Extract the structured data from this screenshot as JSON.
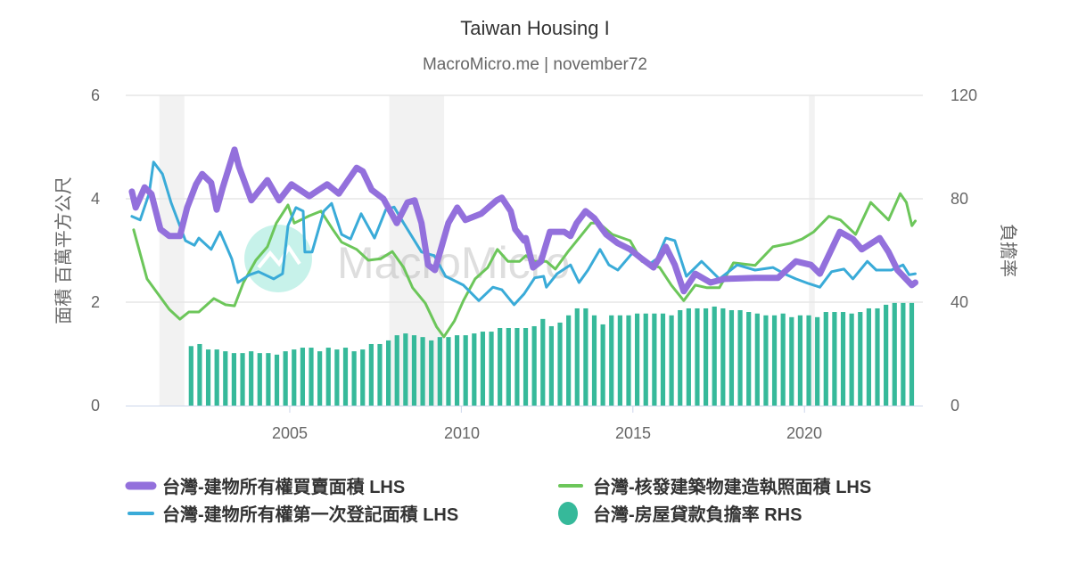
{
  "chart_data": {
    "type": "line+bar",
    "title": "Taiwan Housing I",
    "subtitle": "MacroMicro.me | november72",
    "watermark": "MacroMicro",
    "xlim": [
      2000.22,
      2023.45
    ],
    "x_ticks": [
      "2005",
      "2010",
      "2015",
      "2020"
    ],
    "y_left": {
      "label": "面積 百萬平方公尺",
      "lim": [
        0,
        6
      ],
      "ticks": [
        "0",
        "2",
        "4",
        "6"
      ]
    },
    "y_right": {
      "label": "負擔率",
      "lim": [
        0,
        120
      ],
      "ticks": [
        "0",
        "40",
        "80",
        "120"
      ]
    },
    "grid": true,
    "legend_position": "bottom",
    "shaded_periods": [
      [
        2001.2,
        2001.93
      ],
      [
        2007.9,
        2009.5
      ],
      [
        2020.13,
        2020.3
      ]
    ],
    "colors": {
      "purple": "#9370dc",
      "green": "#6cc65a",
      "blue": "#3aabd8",
      "teal": "#36b99a",
      "shade": "#f2f2f2"
    },
    "series": [
      {
        "name": "台灣-建物所有權買賣面積 LHS",
        "type": "line",
        "axis": "left",
        "color": "#9370dc",
        "width": 7,
        "points": [
          [
            2000.4,
            4.14
          ],
          [
            2000.51,
            3.83
          ],
          [
            2000.77,
            4.22
          ],
          [
            2000.97,
            4.09
          ],
          [
            2001.23,
            3.41
          ],
          [
            2001.49,
            3.28
          ],
          [
            2001.8,
            3.28
          ],
          [
            2002.01,
            3.83
          ],
          [
            2002.27,
            4.28
          ],
          [
            2002.45,
            4.48
          ],
          [
            2002.71,
            4.31
          ],
          [
            2002.87,
            3.79
          ],
          [
            2003.05,
            4.22
          ],
          [
            2003.39,
            4.95
          ],
          [
            2003.52,
            4.62
          ],
          [
            2003.88,
            3.97
          ],
          [
            2004.35,
            4.36
          ],
          [
            2004.69,
            3.97
          ],
          [
            2005.05,
            4.28
          ],
          [
            2005.57,
            4.05
          ],
          [
            2006.09,
            4.28
          ],
          [
            2006.43,
            4.1
          ],
          [
            2006.95,
            4.6
          ],
          [
            2007.13,
            4.53
          ],
          [
            2007.39,
            4.17
          ],
          [
            2007.73,
            4.0
          ],
          [
            2008.12,
            3.53
          ],
          [
            2008.43,
            3.93
          ],
          [
            2008.64,
            3.97
          ],
          [
            2008.84,
            3.53
          ],
          [
            2009.03,
            2.72
          ],
          [
            2009.23,
            2.62
          ],
          [
            2009.62,
            3.53
          ],
          [
            2009.88,
            3.83
          ],
          [
            2010.12,
            3.59
          ],
          [
            2010.58,
            3.71
          ],
          [
            2011.03,
            3.97
          ],
          [
            2011.18,
            4.02
          ],
          [
            2011.44,
            3.76
          ],
          [
            2011.57,
            3.41
          ],
          [
            2011.83,
            3.19
          ],
          [
            2011.88,
            3.24
          ],
          [
            2012.09,
            2.67
          ],
          [
            2012.32,
            2.79
          ],
          [
            2012.58,
            3.36
          ],
          [
            2013.0,
            3.36
          ],
          [
            2013.18,
            3.28
          ],
          [
            2013.36,
            3.53
          ],
          [
            2013.62,
            3.76
          ],
          [
            2013.88,
            3.62
          ],
          [
            2014.22,
            3.31
          ],
          [
            2014.56,
            3.14
          ],
          [
            2014.92,
            3.02
          ],
          [
            2015.26,
            2.84
          ],
          [
            2015.6,
            2.67
          ],
          [
            2015.96,
            3.07
          ],
          [
            2016.22,
            2.72
          ],
          [
            2016.48,
            2.21
          ],
          [
            2016.82,
            2.55
          ],
          [
            2017.26,
            2.38
          ],
          [
            2017.68,
            2.45
          ],
          [
            2018.56,
            2.47
          ],
          [
            2019.23,
            2.47
          ],
          [
            2019.75,
            2.79
          ],
          [
            2020.19,
            2.72
          ],
          [
            2020.45,
            2.55
          ],
          [
            2021.03,
            3.36
          ],
          [
            2021.41,
            3.22
          ],
          [
            2021.67,
            3.02
          ],
          [
            2022.19,
            3.24
          ],
          [
            2022.45,
            2.97
          ],
          [
            2022.71,
            2.62
          ],
          [
            2023.13,
            2.33
          ],
          [
            2023.23,
            2.38
          ]
        ]
      },
      {
        "name": "台灣-核發建築物建造執照面積 LHS",
        "type": "line",
        "axis": "left",
        "color": "#6cc65a",
        "width": 3,
        "points": [
          [
            2000.45,
            3.4
          ],
          [
            2000.84,
            2.45
          ],
          [
            2001.16,
            2.16
          ],
          [
            2001.49,
            1.86
          ],
          [
            2001.8,
            1.67
          ],
          [
            2002.06,
            1.81
          ],
          [
            2002.35,
            1.81
          ],
          [
            2002.79,
            2.07
          ],
          [
            2003.13,
            1.95
          ],
          [
            2003.39,
            1.93
          ],
          [
            2003.65,
            2.38
          ],
          [
            2004.01,
            2.81
          ],
          [
            2004.35,
            3.07
          ],
          [
            2004.61,
            3.53
          ],
          [
            2004.95,
            3.88
          ],
          [
            2005.13,
            3.53
          ],
          [
            2005.57,
            3.67
          ],
          [
            2005.91,
            3.76
          ],
          [
            2006.25,
            3.41
          ],
          [
            2006.51,
            3.16
          ],
          [
            2006.95,
            3.02
          ],
          [
            2007.29,
            2.81
          ],
          [
            2007.65,
            2.84
          ],
          [
            2007.99,
            2.98
          ],
          [
            2008.32,
            2.67
          ],
          [
            2008.58,
            2.28
          ],
          [
            2008.95,
            1.98
          ],
          [
            2009.28,
            1.52
          ],
          [
            2009.49,
            1.33
          ],
          [
            2009.8,
            1.64
          ],
          [
            2010.06,
            2.03
          ],
          [
            2010.4,
            2.45
          ],
          [
            2010.77,
            2.67
          ],
          [
            2011.05,
            3.02
          ],
          [
            2011.36,
            2.79
          ],
          [
            2011.7,
            2.79
          ],
          [
            2011.88,
            2.9
          ],
          [
            2012.14,
            2.79
          ],
          [
            2012.48,
            2.79
          ],
          [
            2012.74,
            2.64
          ],
          [
            2013.1,
            2.97
          ],
          [
            2013.43,
            3.24
          ],
          [
            2013.78,
            3.53
          ],
          [
            2014.01,
            3.53
          ],
          [
            2014.4,
            3.31
          ],
          [
            2014.92,
            3.19
          ],
          [
            2015.26,
            2.79
          ],
          [
            2015.78,
            2.67
          ],
          [
            2016.12,
            2.33
          ],
          [
            2016.48,
            2.03
          ],
          [
            2016.82,
            2.33
          ],
          [
            2017.16,
            2.28
          ],
          [
            2017.52,
            2.28
          ],
          [
            2017.93,
            2.76
          ],
          [
            2018.56,
            2.71
          ],
          [
            2019.08,
            3.07
          ],
          [
            2019.6,
            3.14
          ],
          [
            2019.93,
            3.22
          ],
          [
            2020.27,
            3.36
          ],
          [
            2020.71,
            3.66
          ],
          [
            2021.05,
            3.59
          ],
          [
            2021.49,
            3.31
          ],
          [
            2021.93,
            3.93
          ],
          [
            2022.19,
            3.76
          ],
          [
            2022.45,
            3.59
          ],
          [
            2022.79,
            4.1
          ],
          [
            2022.97,
            3.93
          ],
          [
            2023.13,
            3.48
          ],
          [
            2023.23,
            3.57
          ]
        ]
      },
      {
        "name": "台灣-建物所有權第一次登記面積 LHS",
        "type": "line",
        "axis": "left",
        "color": "#3aabd8",
        "width": 3,
        "points": [
          [
            2000.4,
            3.66
          ],
          [
            2000.64,
            3.59
          ],
          [
            2000.9,
            4.1
          ],
          [
            2001.03,
            4.71
          ],
          [
            2001.29,
            4.48
          ],
          [
            2001.54,
            3.93
          ],
          [
            2001.96,
            3.19
          ],
          [
            2002.22,
            3.1
          ],
          [
            2002.35,
            3.24
          ],
          [
            2002.71,
            3.02
          ],
          [
            2002.97,
            3.36
          ],
          [
            2003.31,
            2.84
          ],
          [
            2003.49,
            2.38
          ],
          [
            2003.83,
            2.53
          ],
          [
            2004.09,
            2.59
          ],
          [
            2004.53,
            2.45
          ],
          [
            2004.79,
            2.55
          ],
          [
            2004.95,
            3.48
          ],
          [
            2005.18,
            3.83
          ],
          [
            2005.39,
            3.76
          ],
          [
            2005.44,
            2.97
          ],
          [
            2005.65,
            2.97
          ],
          [
            2005.99,
            3.76
          ],
          [
            2006.22,
            3.91
          ],
          [
            2006.51,
            3.31
          ],
          [
            2006.77,
            3.22
          ],
          [
            2007.08,
            3.71
          ],
          [
            2007.47,
            3.24
          ],
          [
            2007.8,
            3.79
          ],
          [
            2008.04,
            3.84
          ],
          [
            2008.32,
            3.53
          ],
          [
            2008.84,
            2.97
          ],
          [
            2009.21,
            2.9
          ],
          [
            2009.54,
            2.5
          ],
          [
            2010.06,
            2.33
          ],
          [
            2010.51,
            2.03
          ],
          [
            2010.92,
            2.29
          ],
          [
            2011.18,
            2.24
          ],
          [
            2011.54,
            1.95
          ],
          [
            2011.83,
            2.16
          ],
          [
            2012.14,
            2.47
          ],
          [
            2012.4,
            2.5
          ],
          [
            2012.48,
            2.29
          ],
          [
            2012.79,
            2.55
          ],
          [
            2013.18,
            2.72
          ],
          [
            2013.43,
            2.38
          ],
          [
            2013.69,
            2.62
          ],
          [
            2014.04,
            3.02
          ],
          [
            2014.3,
            2.72
          ],
          [
            2014.56,
            2.62
          ],
          [
            2015.01,
            2.97
          ],
          [
            2015.45,
            2.72
          ],
          [
            2015.7,
            2.84
          ],
          [
            2015.96,
            3.24
          ],
          [
            2016.22,
            3.19
          ],
          [
            2016.56,
            2.5
          ],
          [
            2017.0,
            2.79
          ],
          [
            2017.52,
            2.45
          ],
          [
            2018.04,
            2.72
          ],
          [
            2018.56,
            2.62
          ],
          [
            2019.08,
            2.67
          ],
          [
            2019.41,
            2.55
          ],
          [
            2019.75,
            2.45
          ],
          [
            2020.12,
            2.36
          ],
          [
            2020.45,
            2.29
          ],
          [
            2020.79,
            2.59
          ],
          [
            2021.15,
            2.64
          ],
          [
            2021.41,
            2.45
          ],
          [
            2021.83,
            2.79
          ],
          [
            2022.09,
            2.62
          ],
          [
            2022.53,
            2.62
          ],
          [
            2022.87,
            2.72
          ],
          [
            2023.05,
            2.53
          ],
          [
            2023.23,
            2.55
          ]
        ]
      },
      {
        "name": "台灣-房屋貸款負擔率 RHS",
        "type": "bar",
        "axis": "right",
        "color": "#36b99a",
        "frequency": "quarterly",
        "start": "2002Q1",
        "values": [
          23.0,
          23.8,
          21.7,
          21.7,
          21.0,
          20.3,
          20.3,
          21.0,
          20.3,
          20.3,
          19.7,
          21.0,
          21.7,
          22.4,
          22.4,
          21.0,
          22.4,
          21.7,
          22.4,
          21.0,
          21.7,
          23.8,
          23.8,
          25.2,
          27.2,
          27.9,
          27.2,
          26.5,
          25.2,
          26.5,
          26.5,
          27.2,
          27.2,
          27.9,
          28.6,
          28.6,
          30.0,
          30.0,
          30.0,
          30.0,
          30.7,
          33.5,
          30.7,
          32.1,
          34.9,
          37.6,
          37.6,
          34.9,
          31.4,
          34.9,
          34.9,
          34.9,
          35.6,
          35.6,
          35.6,
          35.6,
          34.9,
          36.9,
          37.6,
          37.6,
          37.6,
          38.3,
          37.6,
          36.9,
          36.9,
          36.2,
          35.6,
          34.9,
          34.9,
          35.6,
          34.2,
          34.9,
          34.9,
          34.2,
          36.2,
          36.2,
          36.2,
          35.6,
          36.2,
          37.6,
          37.6,
          39.0,
          39.7,
          39.7,
          39.7
        ]
      }
    ]
  }
}
